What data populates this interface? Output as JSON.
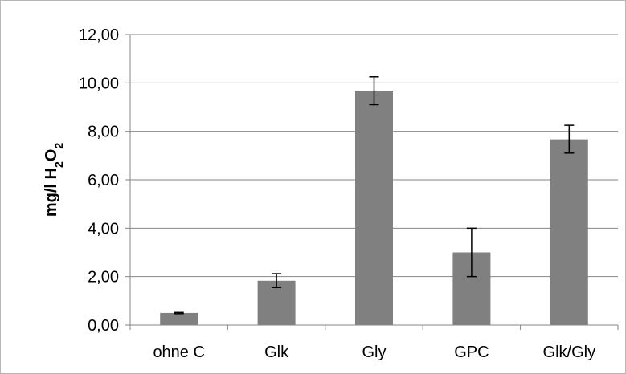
{
  "chart_data": {
    "type": "bar",
    "title": "",
    "xlabel": "",
    "ylabel": {
      "main": "mg/l H",
      "sub1": "2",
      "mid": "O",
      "sub2": "2"
    },
    "categories": [
      "ohne C",
      "Glk",
      "Gly",
      "GPC",
      "Glk/Gly"
    ],
    "values": [
      0.5,
      1.83,
      9.68,
      3.0,
      7.67
    ],
    "error_low": [
      0.47,
      1.55,
      9.1,
      2.0,
      7.1
    ],
    "error_high": [
      0.52,
      2.12,
      10.25,
      4.0,
      8.25
    ],
    "ylim": [
      0,
      12
    ],
    "yticks": [
      0,
      2,
      4,
      6,
      8,
      10,
      12
    ],
    "ytick_labels": [
      "0,00",
      "2,00",
      "4,00",
      "6,00",
      "8,00",
      "10,00",
      "12,00"
    ],
    "grid": true,
    "bar_color": "#808080",
    "grid_color": "#868686",
    "axis_color": "#868686"
  }
}
